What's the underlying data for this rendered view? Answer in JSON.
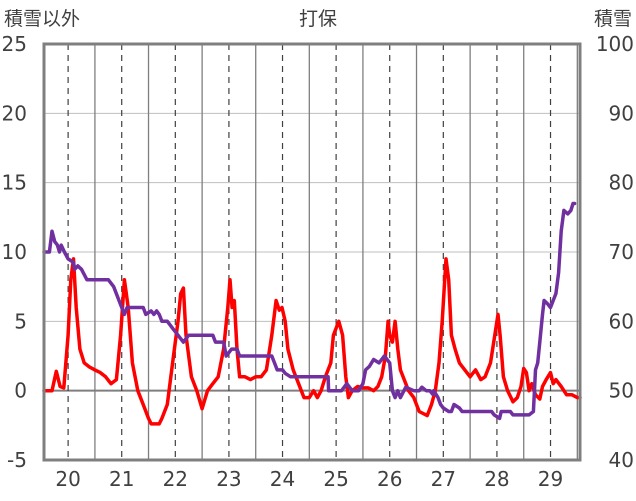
{
  "chart_data": {
    "type": "line",
    "title": "打保",
    "ylabel_left": "積雪以外",
    "ylabel_right": "積雪",
    "x_ticks": [
      "20",
      "21",
      "22",
      "23",
      "24",
      "25",
      "26",
      "27",
      "28",
      "29"
    ],
    "xlim": [
      19.55,
      29.55
    ],
    "ylim_left": [
      -5,
      25
    ],
    "ylim_right": [
      40,
      100
    ],
    "yticks_left": [
      "-5",
      "0",
      "5",
      "10",
      "15",
      "20",
      "25"
    ],
    "yticks_right": [
      "40",
      "50",
      "60",
      "70",
      "80",
      "90",
      "100"
    ],
    "grid": true,
    "series": [
      {
        "axis": "left",
        "color": "#ff0000",
        "points": [
          [
            19.55,
            0.0
          ],
          [
            19.7,
            0.0
          ],
          [
            19.78,
            1.4
          ],
          [
            19.85,
            0.3
          ],
          [
            19.92,
            0.2
          ],
          [
            20.0,
            4.0
          ],
          [
            20.05,
            8.0
          ],
          [
            20.1,
            9.5
          ],
          [
            20.15,
            6.0
          ],
          [
            20.22,
            3.0
          ],
          [
            20.3,
            2.0
          ],
          [
            20.4,
            1.7
          ],
          [
            20.5,
            1.5
          ],
          [
            20.6,
            1.3
          ],
          [
            20.7,
            1.0
          ],
          [
            20.8,
            0.5
          ],
          [
            20.9,
            0.8
          ],
          [
            20.98,
            4.0
          ],
          [
            21.05,
            8.0
          ],
          [
            21.12,
            6.0
          ],
          [
            21.2,
            2.0
          ],
          [
            21.3,
            0.0
          ],
          [
            21.4,
            -1.0
          ],
          [
            21.5,
            -2.0
          ],
          [
            21.55,
            -2.4
          ],
          [
            21.7,
            -2.4
          ],
          [
            21.75,
            -2.0
          ],
          [
            21.85,
            -1.0
          ],
          [
            21.95,
            2.0
          ],
          [
            22.05,
            5.0
          ],
          [
            22.1,
            7.0
          ],
          [
            22.15,
            7.4
          ],
          [
            22.2,
            4.0
          ],
          [
            22.3,
            1.0
          ],
          [
            22.4,
            0.0
          ],
          [
            22.5,
            -1.3
          ],
          [
            22.6,
            0.0
          ],
          [
            22.7,
            0.5
          ],
          [
            22.8,
            1.0
          ],
          [
            22.9,
            3.0
          ],
          [
            22.98,
            6.0
          ],
          [
            23.02,
            8.0
          ],
          [
            23.06,
            6.0
          ],
          [
            23.1,
            6.5
          ],
          [
            23.15,
            3.0
          ],
          [
            23.2,
            1.0
          ],
          [
            23.3,
            1.0
          ],
          [
            23.4,
            0.8
          ],
          [
            23.5,
            1.0
          ],
          [
            23.6,
            1.0
          ],
          [
            23.7,
            1.5
          ],
          [
            23.8,
            4.0
          ],
          [
            23.88,
            6.5
          ],
          [
            23.94,
            5.8
          ],
          [
            23.99,
            6.0
          ],
          [
            24.05,
            5.0
          ],
          [
            24.1,
            3.0
          ],
          [
            24.2,
            1.5
          ],
          [
            24.3,
            0.5
          ],
          [
            24.4,
            -0.5
          ],
          [
            24.5,
            -0.5
          ],
          [
            24.58,
            0.0
          ],
          [
            24.65,
            -0.5
          ],
          [
            24.72,
            0.0
          ],
          [
            24.8,
            1.0
          ],
          [
            24.9,
            2.0
          ],
          [
            24.95,
            4.0
          ],
          [
            25.05,
            5.0
          ],
          [
            25.12,
            4.0
          ],
          [
            25.18,
            1.0
          ],
          [
            25.23,
            -0.5
          ],
          [
            25.3,
            0.0
          ],
          [
            25.4,
            0.3
          ],
          [
            25.5,
            0.2
          ],
          [
            25.6,
            0.2
          ],
          [
            25.7,
            0.0
          ],
          [
            25.78,
            0.3
          ],
          [
            25.85,
            1.0
          ],
          [
            25.92,
            2.5
          ],
          [
            25.97,
            5.0
          ],
          [
            26.0,
            4.0
          ],
          [
            26.05,
            3.5
          ],
          [
            26.1,
            5.0
          ],
          [
            26.15,
            3.0
          ],
          [
            26.2,
            1.5
          ],
          [
            26.3,
            0.5
          ],
          [
            26.35,
            0.0
          ],
          [
            26.45,
            -0.5
          ],
          [
            26.55,
            -1.5
          ],
          [
            26.7,
            -1.8
          ],
          [
            26.78,
            -1.0
          ],
          [
            26.85,
            0.0
          ],
          [
            26.92,
            2.0
          ],
          [
            26.98,
            5.0
          ],
          [
            27.05,
            9.5
          ],
          [
            27.1,
            8.0
          ],
          [
            27.15,
            4.0
          ],
          [
            27.22,
            3.0
          ],
          [
            27.3,
            2.0
          ],
          [
            27.4,
            1.5
          ],
          [
            27.5,
            1.0
          ],
          [
            27.6,
            1.5
          ],
          [
            27.7,
            0.8
          ],
          [
            27.78,
            1.0
          ],
          [
            27.88,
            2.0
          ],
          [
            27.96,
            4.0
          ],
          [
            28.02,
            5.5
          ],
          [
            28.06,
            4.0
          ],
          [
            28.12,
            1.0
          ],
          [
            28.2,
            0.0
          ],
          [
            28.3,
            -0.8
          ],
          [
            28.38,
            -0.5
          ],
          [
            28.45,
            0.3
          ],
          [
            28.5,
            1.6
          ],
          [
            28.55,
            1.3
          ],
          [
            28.6,
            0.0
          ],
          [
            28.65,
            0.5
          ],
          [
            28.72,
            -0.3
          ],
          [
            28.8,
            -0.6
          ],
          [
            28.85,
            0.3
          ],
          [
            28.92,
            0.8
          ],
          [
            29.0,
            1.3
          ],
          [
            29.05,
            0.5
          ],
          [
            29.1,
            0.8
          ],
          [
            29.2,
            0.3
          ],
          [
            29.3,
            -0.3
          ],
          [
            29.4,
            -0.3
          ],
          [
            29.5,
            -0.5
          ],
          [
            29.55,
            -0.5
          ]
        ]
      },
      {
        "axis": "right",
        "color": "#7030a0",
        "points": [
          [
            19.55,
            70.0
          ],
          [
            19.65,
            70.0
          ],
          [
            19.7,
            73.0
          ],
          [
            19.75,
            71.5
          ],
          [
            19.8,
            71.0
          ],
          [
            19.84,
            70.0
          ],
          [
            19.87,
            71.0
          ],
          [
            19.93,
            70.0
          ],
          [
            20.0,
            69.0
          ],
          [
            20.1,
            68.5
          ],
          [
            20.12,
            67.5
          ],
          [
            20.18,
            68.0
          ],
          [
            20.25,
            67.5
          ],
          [
            20.35,
            66.0
          ],
          [
            20.75,
            66.0
          ],
          [
            20.85,
            65.0
          ],
          [
            20.95,
            63.0
          ],
          [
            21.05,
            61.0
          ],
          [
            21.1,
            62.0
          ],
          [
            21.4,
            62.0
          ],
          [
            21.45,
            61.0
          ],
          [
            21.55,
            61.5
          ],
          [
            21.6,
            61.0
          ],
          [
            21.65,
            61.5
          ],
          [
            21.7,
            61.0
          ],
          [
            21.75,
            60.0
          ],
          [
            21.85,
            60.0
          ],
          [
            21.9,
            59.5
          ],
          [
            21.95,
            59.0
          ],
          [
            22.0,
            58.5
          ],
          [
            22.1,
            57.5
          ],
          [
            22.15,
            57.0
          ],
          [
            22.25,
            58.0
          ],
          [
            22.7,
            58.0
          ],
          [
            22.75,
            57.0
          ],
          [
            22.9,
            57.0
          ],
          [
            22.95,
            55.0
          ],
          [
            23.05,
            56.0
          ],
          [
            23.15,
            56.0
          ],
          [
            23.2,
            55.0
          ],
          [
            23.8,
            55.0
          ],
          [
            23.85,
            54.0
          ],
          [
            23.9,
            53.0
          ],
          [
            24.0,
            53.0
          ],
          [
            24.05,
            52.5
          ],
          [
            24.15,
            52.0
          ],
          [
            24.85,
            52.0
          ],
          [
            24.86,
            50.0
          ],
          [
            25.1,
            50.0
          ],
          [
            25.2,
            51.0
          ],
          [
            25.3,
            50.0
          ],
          [
            25.42,
            50.0
          ],
          [
            25.5,
            51.0
          ],
          [
            25.55,
            53.0
          ],
          [
            25.62,
            53.5
          ],
          [
            25.7,
            54.5
          ],
          [
            25.8,
            54.0
          ],
          [
            25.9,
            55.0
          ],
          [
            26.0,
            54.0
          ],
          [
            26.05,
            50.0
          ],
          [
            26.1,
            49.0
          ],
          [
            26.15,
            50.0
          ],
          [
            26.2,
            49.0
          ],
          [
            26.3,
            50.5
          ],
          [
            26.45,
            50.0
          ],
          [
            26.55,
            50.0
          ],
          [
            26.6,
            50.5
          ],
          [
            26.68,
            50.0
          ],
          [
            26.75,
            50.0
          ],
          [
            26.8,
            49.5
          ],
          [
            26.82,
            50.0
          ],
          [
            26.9,
            49.0
          ],
          [
            26.95,
            48.0
          ],
          [
            27.0,
            47.5
          ],
          [
            27.1,
            47.0
          ],
          [
            27.15,
            47.0
          ],
          [
            27.2,
            48.0
          ],
          [
            27.3,
            47.5
          ],
          [
            27.35,
            47.0
          ],
          [
            27.9,
            47.0
          ],
          [
            27.95,
            46.5
          ],
          [
            28.05,
            46.0
          ],
          [
            28.08,
            47.0
          ],
          [
            28.25,
            47.0
          ],
          [
            28.3,
            46.5
          ],
          [
            28.4,
            46.5
          ],
          [
            28.6,
            46.5
          ],
          [
            28.68,
            47.0
          ],
          [
            28.72,
            53.0
          ],
          [
            28.76,
            54.0
          ],
          [
            28.8,
            57.0
          ],
          [
            28.85,
            61.0
          ],
          [
            28.88,
            63.0
          ],
          [
            28.95,
            62.5
          ],
          [
            29.0,
            62.0
          ],
          [
            29.05,
            63.0
          ],
          [
            29.1,
            64.0
          ],
          [
            29.15,
            67.0
          ],
          [
            29.2,
            73.0
          ],
          [
            29.25,
            76.0
          ],
          [
            29.32,
            75.5
          ],
          [
            29.38,
            76.0
          ],
          [
            29.42,
            77.0
          ],
          [
            29.45,
            77.0
          ]
        ]
      }
    ]
  }
}
